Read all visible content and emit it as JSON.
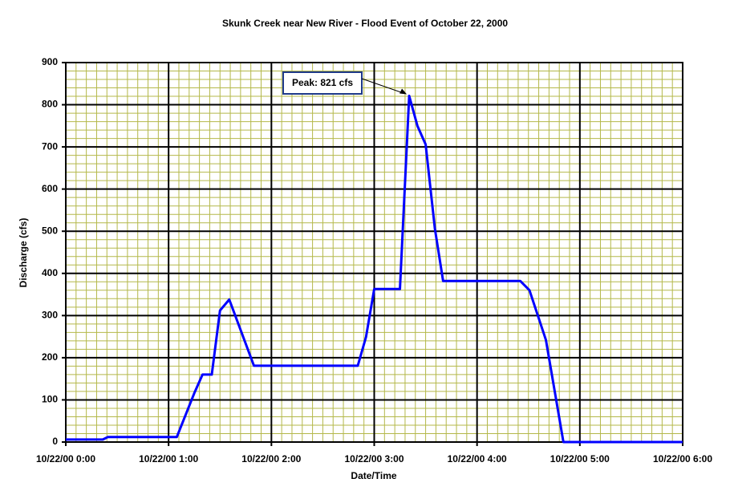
{
  "chart_data": {
    "type": "line",
    "title": "Skunk Creek near New River - Flood Event of October 22, 2000",
    "x_label": "Date/Time",
    "y_label": "Discharge (cfs)",
    "x": [
      0,
      0.36,
      0.41,
      1.08,
      1.25,
      1.33,
      1.42,
      1.5,
      1.59,
      1.83,
      2.84,
      2.92,
      3.0,
      3.25,
      3.34,
      3.42,
      3.5,
      3.59,
      3.67,
      4.42,
      4.51,
      4.67,
      4.84,
      6
    ],
    "series": [
      {
        "name": "Discharge",
        "color": "#0000ff",
        "values": [
          6,
          6,
          12,
          12,
          116,
          160,
          160,
          312,
          338,
          181,
          181,
          249,
          363,
          363,
          821,
          750,
          706,
          506,
          382,
          382,
          360,
          242,
          0,
          0
        ]
      }
    ],
    "xlim": [
      0,
      6
    ],
    "xticks": [
      {
        "value": 0,
        "label": "10/22/00 0:00"
      },
      {
        "value": 1,
        "label": "10/22/00 1:00"
      },
      {
        "value": 2,
        "label": "10/22/00 2:00"
      },
      {
        "value": 3,
        "label": "10/22/00 3:00"
      },
      {
        "value": 4,
        "label": "10/22/00 4:00"
      },
      {
        "value": 5,
        "label": "10/22/00 5:00"
      },
      {
        "value": 6,
        "label": "10/22/00 6:00"
      }
    ],
    "ylim": [
      0,
      900
    ],
    "yticks": [
      0,
      100,
      200,
      300,
      400,
      500,
      600,
      700,
      800,
      900
    ],
    "grid": true,
    "annotation": {
      "text": "Peak: 821 cfs",
      "x": 3.34,
      "y": 821
    }
  }
}
